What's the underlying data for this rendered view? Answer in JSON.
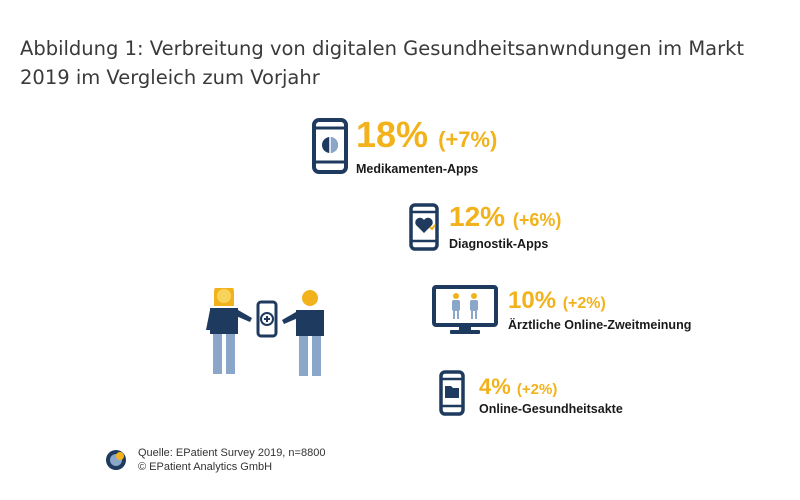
{
  "title": "Abbildung 1: Verbreitung von digitalen Gesundheitsanwndungen im Markt 2019 im Vergleich zum Vorjahr",
  "chart_data": {
    "type": "infographic",
    "title": "Abbildung 1: Verbreitung von digitalen Gesundheitsanwndungen im Markt 2019 im Vergleich zum Vorjahr",
    "unit": "%",
    "items": [
      {
        "label": "Medikamenten-Apps",
        "value": 18,
        "value_text": "18%",
        "change": 7,
        "change_text": "(+7%)",
        "icon": "phone-pill-icon"
      },
      {
        "label": "Diagnostik-Apps",
        "value": 12,
        "value_text": "12%",
        "change": 6,
        "change_text": "(+6%)",
        "icon": "phone-heart-icon"
      },
      {
        "label": "Ärztliche Online-Zweitmeinung",
        "value": 10,
        "value_text": "10%",
        "change": 2,
        "change_text": "(+2%)",
        "icon": "monitor-doctors-icon"
      },
      {
        "label": "Online-Gesundheitsakte",
        "value": 4,
        "value_text": "4%",
        "change": 2,
        "change_text": "(+2%)",
        "icon": "phone-folder-icon"
      }
    ]
  },
  "source": {
    "line1": "Quelle: EPatient Survey 2019, n=8800",
    "line2": "© EPatient Analytics GmbH"
  },
  "colors": {
    "accent": "#f2b21c",
    "navy": "#1f3a5f",
    "title": "#3a3a3a"
  }
}
